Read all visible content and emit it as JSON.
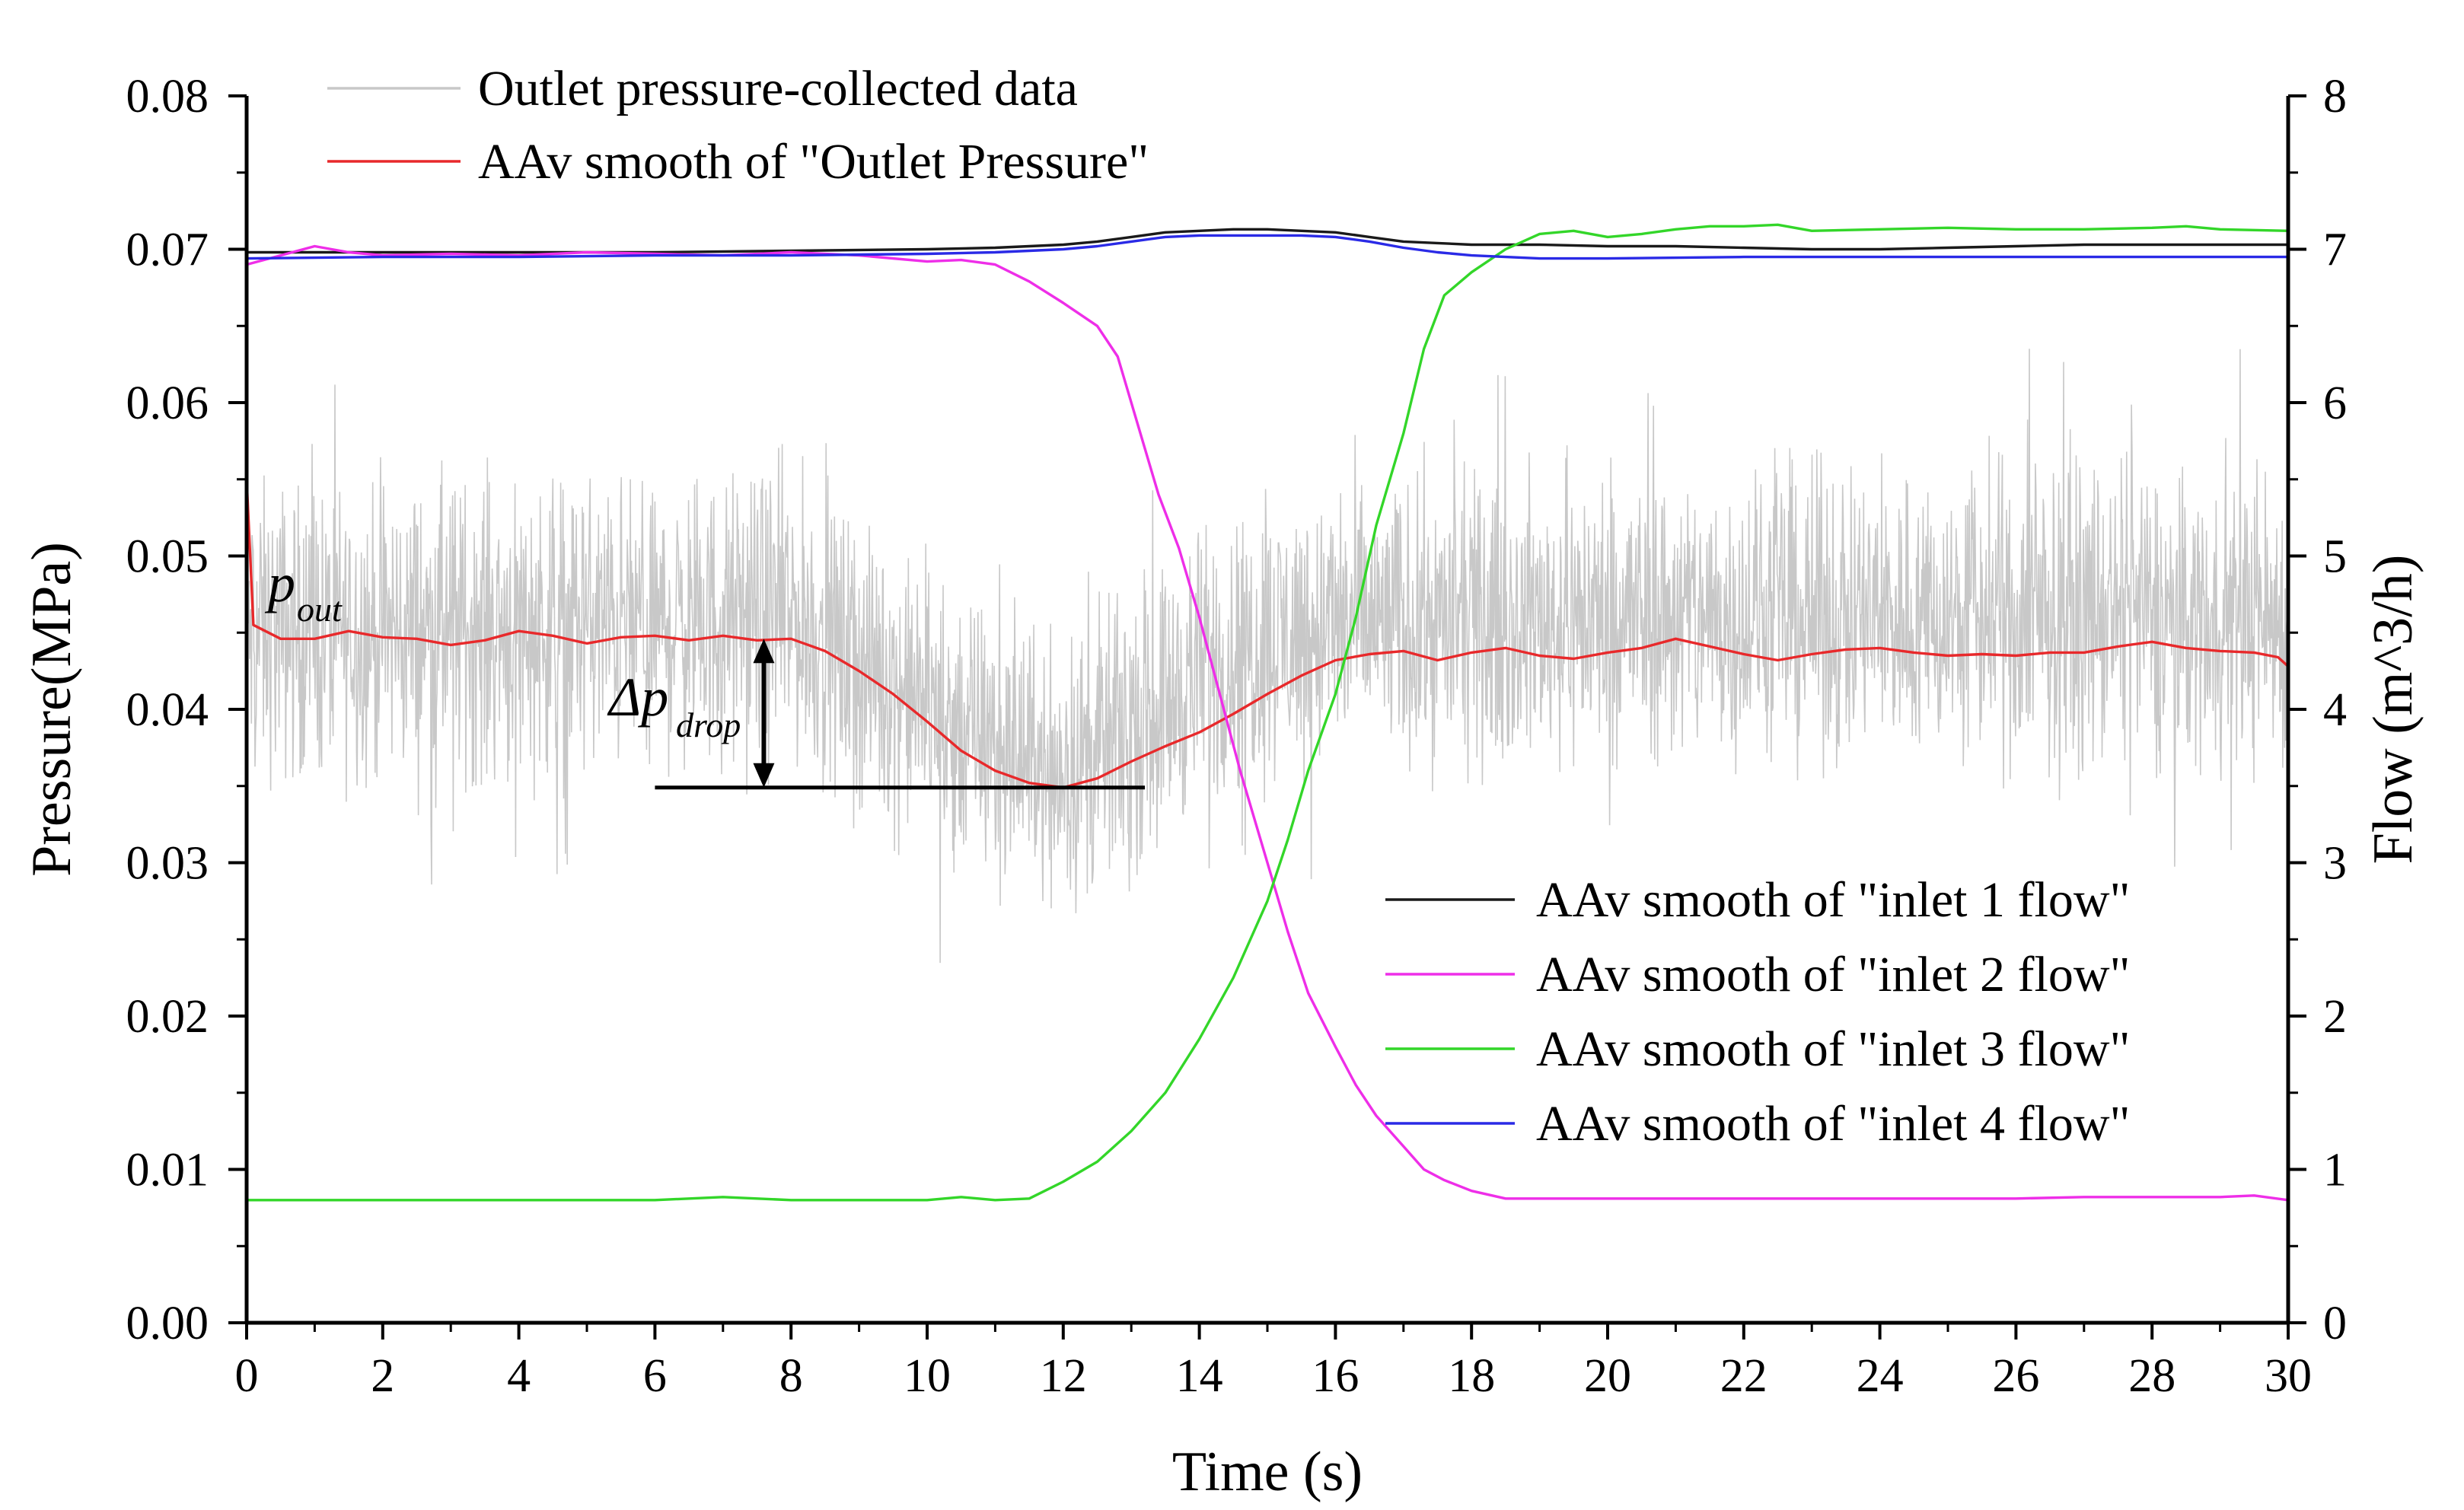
{
  "chart_data": {
    "type": "line",
    "xlabel": "Time (s)",
    "ylabel_left": "Pressure(MPa)",
    "ylabel_right": "Flow (m^3/h)",
    "xlim": [
      0,
      30
    ],
    "ylim_left": [
      0,
      0.08
    ],
    "ylim_right": [
      0,
      8
    ],
    "x_ticks": [
      "0",
      "2",
      "4",
      "6",
      "8",
      "10",
      "12",
      "14",
      "16",
      "18",
      "20",
      "22",
      "24",
      "26",
      "28",
      "30"
    ],
    "y_left_ticks": [
      "0.00",
      "0.01",
      "0.02",
      "0.03",
      "0.04",
      "0.05",
      "0.06",
      "0.07",
      "0.08"
    ],
    "y_right_ticks": [
      "0",
      "1",
      "2",
      "3",
      "4",
      "5",
      "6",
      "7",
      "8"
    ],
    "grid": false,
    "series": [
      {
        "name": "Outlet pressure-collected data",
        "axis": "left",
        "color": "#c8c8c8",
        "noise_band": {
          "x": [
            0,
            2,
            4,
            6,
            8,
            10,
            11,
            12,
            13,
            14,
            15,
            16,
            17,
            18,
            20,
            22,
            24,
            26,
            28,
            30
          ],
          "lo": [
            0.034,
            0.034,
            0.034,
            0.035,
            0.035,
            0.03,
            0.027,
            0.026,
            0.028,
            0.032,
            0.034,
            0.035,
            0.035,
            0.035,
            0.035,
            0.035,
            0.035,
            0.035,
            0.035,
            0.035
          ],
          "hi": [
            0.056,
            0.056,
            0.057,
            0.056,
            0.057,
            0.05,
            0.048,
            0.046,
            0.049,
            0.053,
            0.055,
            0.056,
            0.056,
            0.056,
            0.057,
            0.057,
            0.057,
            0.057,
            0.057,
            0.057
          ]
        }
      },
      {
        "name": "AAv smooth of \"Outlet Pressure\"",
        "axis": "left",
        "color": "#e8292b",
        "x": [
          0,
          0.1,
          0.5,
          1,
          1.5,
          2,
          2.5,
          3,
          3.5,
          4,
          4.5,
          5,
          5.5,
          6,
          6.5,
          7,
          7.5,
          8,
          8.5,
          9,
          9.5,
          10,
          10.5,
          11,
          11.5,
          12,
          12.5,
          13,
          13.5,
          14,
          14.5,
          15,
          15.5,
          16,
          16.5,
          17,
          17.5,
          18,
          18.5,
          19,
          19.5,
          20,
          20.5,
          21,
          21.5,
          22,
          22.5,
          23,
          23.5,
          24,
          24.5,
          25,
          25.5,
          26,
          26.5,
          27,
          27.5,
          28,
          28.5,
          29,
          29.5,
          29.85,
          30
        ],
        "y": [
          0.055,
          0.0455,
          0.0446,
          0.0446,
          0.0451,
          0.0447,
          0.0446,
          0.0442,
          0.0445,
          0.0451,
          0.0448,
          0.0443,
          0.0447,
          0.0448,
          0.0445,
          0.0448,
          0.0445,
          0.0446,
          0.0438,
          0.0425,
          0.041,
          0.0392,
          0.0373,
          0.036,
          0.0352,
          0.0349,
          0.0355,
          0.0366,
          0.0376,
          0.0385,
          0.0397,
          0.041,
          0.0422,
          0.0432,
          0.0436,
          0.0438,
          0.0432,
          0.0437,
          0.044,
          0.0435,
          0.0433,
          0.0437,
          0.044,
          0.0446,
          0.0441,
          0.0436,
          0.0432,
          0.0436,
          0.0439,
          0.044,
          0.0437,
          0.0435,
          0.0436,
          0.0435,
          0.0437,
          0.0437,
          0.0441,
          0.0444,
          0.044,
          0.0438,
          0.0437,
          0.0434,
          0.0428
        ]
      },
      {
        "name": "AAv smooth of  \"inlet 1 flow\"",
        "axis": "right",
        "color": "#1a1a1a",
        "x": [
          0,
          2,
          4,
          6,
          8,
          10,
          11,
          12,
          12.5,
          13,
          13.5,
          14,
          14.5,
          15,
          15.5,
          16,
          16.5,
          17,
          17.5,
          18,
          18.5,
          19,
          20,
          21,
          22,
          23,
          24,
          25,
          26,
          27,
          28,
          29,
          30
        ],
        "y": [
          6.98,
          6.98,
          6.98,
          6.98,
          6.99,
          7.0,
          7.01,
          7.03,
          7.05,
          7.08,
          7.11,
          7.12,
          7.13,
          7.13,
          7.12,
          7.11,
          7.08,
          7.05,
          7.04,
          7.03,
          7.03,
          7.03,
          7.02,
          7.02,
          7.01,
          7.0,
          7.0,
          7.01,
          7.02,
          7.03,
          7.03,
          7.03,
          7.03
        ]
      },
      {
        "name": "AAv smooth of  \"inlet 2 flow\"",
        "axis": "right",
        "color": "#ee2ee8",
        "x": [
          0,
          0.5,
          1,
          1.5,
          2,
          3,
          4,
          5,
          6,
          7,
          8,
          9,
          10,
          10.5,
          11,
          11.5,
          12,
          12.5,
          12.8,
          13.0,
          13.2,
          13.4,
          13.7,
          14.0,
          14.3,
          14.6,
          15.0,
          15.3,
          15.6,
          16.0,
          16.3,
          16.6,
          17.0,
          17.3,
          17.6,
          18,
          18.5,
          19,
          20,
          22,
          24,
          26,
          27,
          28,
          29,
          29.5,
          30
        ],
        "y": [
          6.9,
          6.96,
          7.02,
          6.98,
          6.96,
          6.97,
          6.96,
          6.98,
          6.97,
          6.96,
          6.98,
          6.96,
          6.92,
          6.93,
          6.9,
          6.79,
          6.65,
          6.5,
          6.3,
          6.0,
          5.7,
          5.4,
          5.05,
          4.6,
          4.1,
          3.6,
          3.0,
          2.55,
          2.15,
          1.8,
          1.55,
          1.35,
          1.15,
          1.0,
          0.93,
          0.86,
          0.81,
          0.81,
          0.81,
          0.81,
          0.81,
          0.81,
          0.82,
          0.82,
          0.82,
          0.83,
          0.8
        ]
      },
      {
        "name": "AAv smooth of  \"inlet 3 flow\"",
        "axis": "right",
        "color": "#33d629",
        "x": [
          0,
          1,
          2,
          3,
          4,
          5,
          6,
          7,
          8,
          9,
          10,
          10.5,
          11,
          11.5,
          12,
          12.5,
          13,
          13.5,
          14,
          14.5,
          15,
          15.3,
          15.6,
          16.0,
          16.3,
          16.6,
          17.0,
          17.3,
          17.6,
          18,
          18.5,
          19,
          19.5,
          20,
          20.5,
          21,
          21.5,
          22,
          22.5,
          23,
          24,
          25,
          26,
          27,
          28,
          28.5,
          29,
          30
        ],
        "y": [
          0.8,
          0.8,
          0.8,
          0.8,
          0.8,
          0.8,
          0.8,
          0.82,
          0.8,
          0.8,
          0.8,
          0.82,
          0.8,
          0.81,
          0.92,
          1.05,
          1.25,
          1.5,
          1.85,
          2.25,
          2.75,
          3.15,
          3.6,
          4.1,
          4.6,
          5.2,
          5.8,
          6.35,
          6.7,
          6.85,
          7.0,
          7.1,
          7.12,
          7.08,
          7.1,
          7.13,
          7.15,
          7.15,
          7.16,
          7.12,
          7.13,
          7.14,
          7.13,
          7.13,
          7.14,
          7.15,
          7.13,
          7.12
        ]
      },
      {
        "name": "AAv smooth of  \"inlet 4 flow\"",
        "axis": "right",
        "color": "#2a2ae6",
        "x": [
          0,
          2,
          4,
          6,
          8,
          10,
          11,
          12,
          12.5,
          13,
          13.5,
          14,
          14.5,
          15,
          15.5,
          16,
          16.5,
          17,
          17.5,
          18,
          18.5,
          19,
          20,
          22,
          24,
          26,
          28,
          30
        ],
        "y": [
          6.94,
          6.95,
          6.95,
          6.96,
          6.96,
          6.97,
          6.98,
          7.0,
          7.02,
          7.05,
          7.08,
          7.09,
          7.09,
          7.09,
          7.09,
          7.08,
          7.05,
          7.01,
          6.98,
          6.96,
          6.95,
          6.94,
          6.94,
          6.95,
          6.95,
          6.95,
          6.95,
          6.95
        ]
      }
    ],
    "annotations": {
      "p_out_main": "p",
      "p_out_sub": "out",
      "dp_main": "Δp",
      "dp_sub": "drop",
      "drop_bracket": {
        "x_start": 6.0,
        "x_end": 13.2,
        "y_top": 0.0446,
        "y_bottom": 0.0349,
        "arrow_x": 7.6
      }
    },
    "legend_top_position": "top-left",
    "legend_bottom_position": "bottom-right"
  }
}
